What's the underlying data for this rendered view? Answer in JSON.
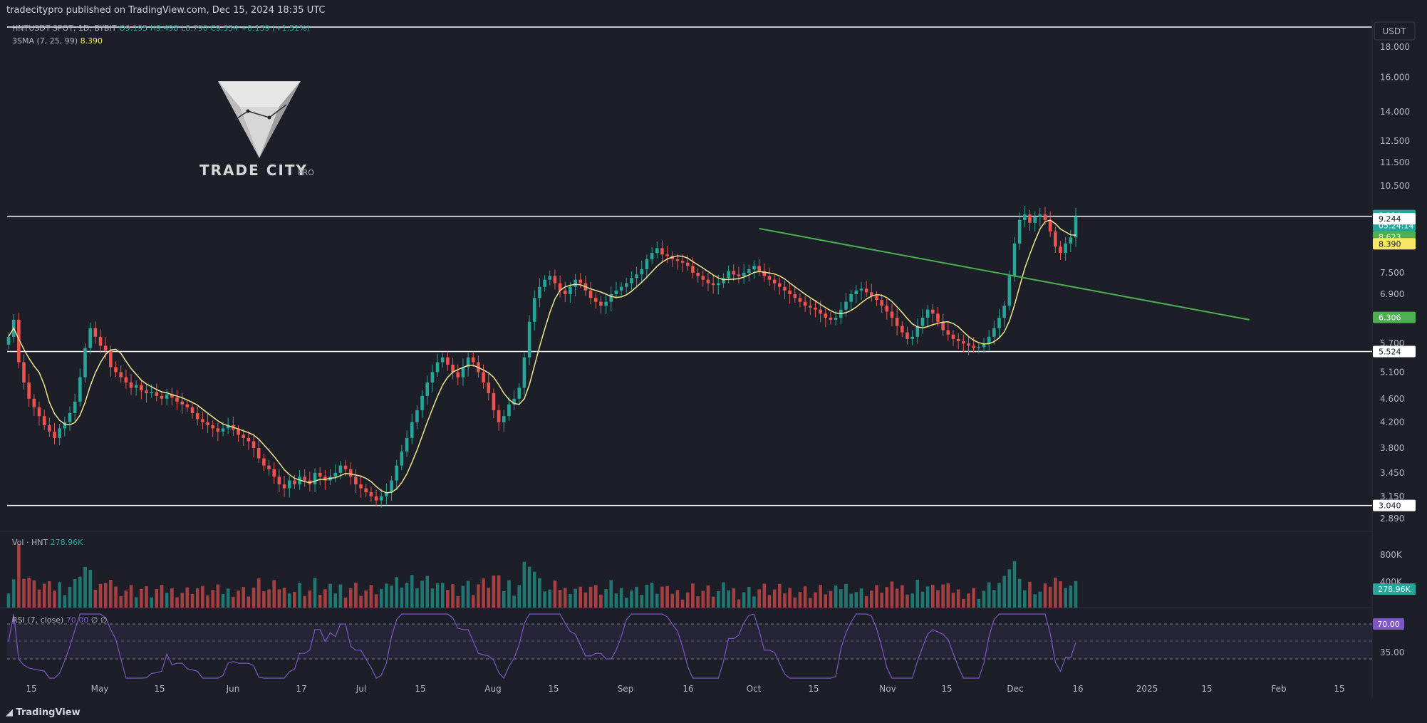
{
  "header": {
    "published_by": "tradecitypro published on TradingView.com, Dec 15, 2024 18:35 UTC"
  },
  "footer": {
    "brand": "TradingView"
  },
  "logo": {
    "name": "TRADE CITY",
    "suffix": "PRO"
  },
  "symbol_line": {
    "title": "HNTUSDT SPOT, 1D, BYBIT",
    "open": "O9.195",
    "high": "H9.498",
    "low": "L8.790",
    "close": "C9.334",
    "change": "+0.139 (+1.51%)"
  },
  "ma_legend": {
    "label": "3SMA (7, 25, 99)",
    "value": "8.390"
  },
  "volume_legend": {
    "label": "Vol · HNT",
    "value": "278.96K"
  },
  "rsi_legend": {
    "label": "RSI (7, close)",
    "value": "70.00",
    "extra": "∅ ∅"
  },
  "currency": "USDT",
  "colors": {
    "up": "#26a69a",
    "down": "#ef5350",
    "ma": "#f0e68c",
    "trend": "#4caf50",
    "rsi": "#7e57c2",
    "background": "#1c1f28"
  },
  "chart_data": {
    "type": "candlestick",
    "price_axis_ticks": [
      "18.000",
      "16.000",
      "14.000",
      "12.500",
      "11.500",
      "10.500",
      "7.500",
      "6.900",
      "5.700",
      "5.100",
      "4.600",
      "4.200",
      "3.800",
      "3.450",
      "3.150",
      "2.890"
    ],
    "price_labels": [
      {
        "text": "9.334",
        "sub": "05:24:14",
        "price": 9.334,
        "color": "#26a69a"
      },
      {
        "text": "9.244",
        "price": 9.244,
        "color": "#ffffff"
      },
      {
        "text": "8.623",
        "price": 8.623,
        "color": "#4caf50"
      },
      {
        "text": "8.390",
        "price": 8.39,
        "color": "#f5e663"
      },
      {
        "text": "6.306",
        "price": 6.306,
        "color": "#4caf50"
      },
      {
        "text": "5.524",
        "price": 5.524,
        "color": "#ffffff"
      },
      {
        "text": "3.040",
        "price": 3.04,
        "color": "#ffffff"
      }
    ],
    "horizontal_levels": [
      9.334,
      5.524,
      3.04
    ],
    "x_ticks": [
      "15",
      "May",
      "15",
      "Jun",
      "17",
      "Jul",
      "15",
      "Aug",
      "15",
      "Sep",
      "16",
      "Oct",
      "15",
      "Nov",
      "15",
      "Dec",
      "16",
      "2025",
      "15",
      "Feb",
      "15"
    ],
    "trendline": {
      "start": {
        "date": "2024-09-05",
        "price": 8.9
      },
      "end": {
        "date": "2024-12-10",
        "price": 6.25
      }
    },
    "rsi_levels": [
      70,
      50,
      30
    ],
    "rsi_axis_ticks": [
      "35.00"
    ],
    "volume_axis_ticks": [
      "800K",
      "400K"
    ],
    "volume_label": "278.96K",
    "rsi_label": "70.00",
    "closes": [
      5.85,
      6.25,
      5.3,
      4.9,
      4.6,
      4.45,
      4.3,
      4.15,
      4.05,
      3.95,
      4.1,
      4.2,
      4.35,
      4.55,
      5.0,
      5.6,
      6.05,
      5.85,
      5.65,
      5.55,
      5.2,
      5.1,
      5.0,
      4.9,
      4.8,
      4.85,
      4.75,
      4.7,
      4.72,
      4.65,
      4.6,
      4.68,
      4.62,
      4.55,
      4.5,
      4.45,
      4.35,
      4.25,
      4.2,
      4.15,
      4.1,
      4.05,
      4.1,
      4.15,
      4.08,
      4.0,
      3.95,
      3.9,
      3.8,
      3.65,
      3.55,
      3.5,
      3.4,
      3.3,
      3.25,
      3.35,
      3.3,
      3.4,
      3.35,
      3.3,
      3.45,
      3.4,
      3.35,
      3.4,
      3.45,
      3.55,
      3.5,
      3.4,
      3.3,
      3.25,
      3.2,
      3.15,
      3.1,
      3.15,
      3.2,
      3.35,
      3.55,
      3.75,
      3.95,
      4.2,
      4.4,
      4.65,
      4.9,
      5.1,
      5.3,
      5.4,
      5.25,
      5.1,
      5.0,
      5.2,
      5.4,
      5.3,
      5.1,
      4.9,
      4.7,
      4.4,
      4.2,
      4.3,
      4.5,
      4.6,
      4.8,
      5.4,
      6.2,
      6.8,
      7.1,
      7.3,
      7.4,
      7.2,
      7.0,
      6.9,
      7.1,
      7.3,
      7.2,
      7.0,
      6.8,
      6.7,
      6.6,
      6.7,
      6.9,
      7.0,
      7.1,
      7.2,
      7.35,
      7.45,
      7.6,
      7.9,
      8.1,
      8.25,
      8.05,
      8.0,
      7.9,
      7.85,
      7.8,
      7.7,
      7.5,
      7.4,
      7.3,
      7.2,
      7.15,
      7.2,
      7.35,
      7.55,
      7.45,
      7.4,
      7.5,
      7.6,
      7.7,
      7.55,
      7.4,
      7.3,
      7.2,
      7.1,
      7.0,
      6.9,
      6.8,
      6.7,
      6.6,
      6.55,
      6.5,
      6.4,
      6.3,
      6.25,
      6.3,
      6.5,
      6.7,
      6.9,
      7.0,
      7.05,
      6.95,
      6.85,
      6.75,
      6.6,
      6.45,
      6.3,
      6.1,
      5.95,
      5.8,
      5.85,
      6.1,
      6.3,
      6.5,
      6.4,
      6.2,
      6.0,
      5.9,
      5.8,
      5.75,
      5.7,
      5.65,
      5.6,
      5.62,
      5.7,
      5.85,
      6.05,
      6.3,
      6.6,
      7.4,
      8.4,
      9.2,
      9.4,
      9.1,
      9.3,
      9.4,
      9.2,
      8.8,
      8.3,
      8.1,
      8.4,
      8.6,
      9.33
    ]
  }
}
